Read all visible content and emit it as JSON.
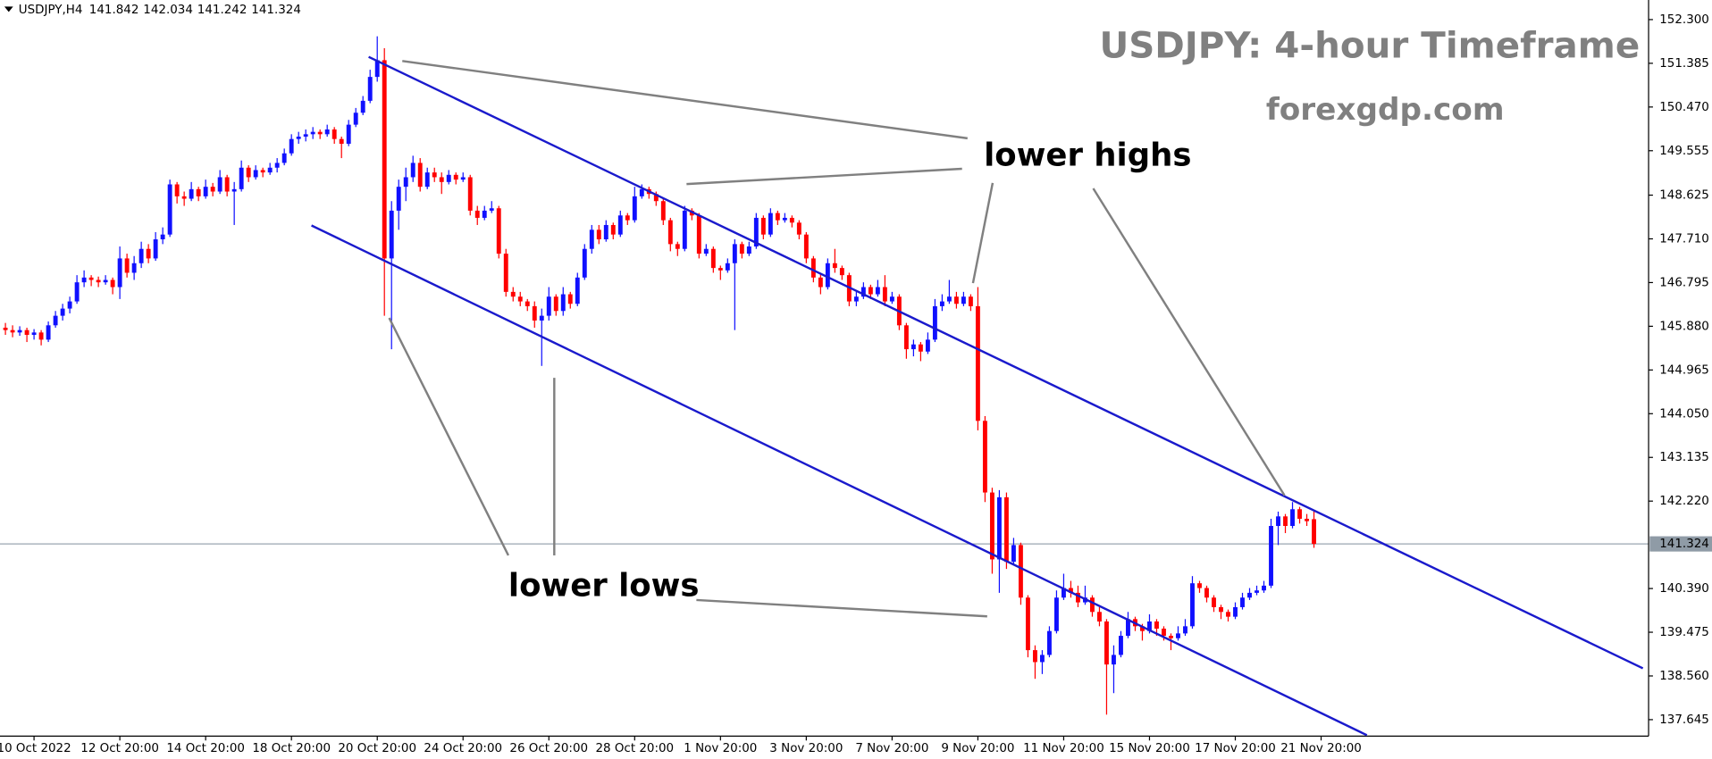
{
  "chart_data": {
    "type": "candlestick",
    "symbol": "USDJPY,H4",
    "title": "USDJPY: 4-hour Timeframe",
    "subtitle": "forexgdp.com",
    "annotations": [
      "lower highs",
      "lower lows"
    ],
    "up_color": "#1010ff",
    "down_color": "#ff0000",
    "trendline_color": "#1a1acc",
    "xlim": [
      -0.76,
      229.8
    ],
    "ylim": [
      137.3,
      152.71
    ],
    "yticks": [
      {
        "value": 152.3,
        "label": "152.300"
      },
      {
        "value": 151.385,
        "label": "151.385"
      },
      {
        "value": 150.47,
        "label": "150.470"
      },
      {
        "value": 149.555,
        "label": "149.555"
      },
      {
        "value": 148.625,
        "label": "148.625"
      },
      {
        "value": 147.71,
        "label": "147.710"
      },
      {
        "value": 146.795,
        "label": "146.795"
      },
      {
        "value": 145.88,
        "label": "145.880"
      },
      {
        "value": 144.965,
        "label": "144.965"
      },
      {
        "value": 144.05,
        "label": "144.050"
      },
      {
        "value": 143.135,
        "label": "143.135"
      },
      {
        "value": 142.22,
        "label": "142.220"
      },
      {
        "value": 140.39,
        "label": "140.390"
      },
      {
        "value": 139.475,
        "label": "139.475"
      },
      {
        "value": 138.56,
        "label": "138.560"
      },
      {
        "value": 137.645,
        "label": "137.645"
      }
    ],
    "xticks": [
      {
        "value": 4,
        "label": "10 Oct 2022"
      },
      {
        "value": 16,
        "label": "12 Oct 20:00"
      },
      {
        "value": 28,
        "label": "14 Oct 20:00"
      },
      {
        "value": 40,
        "label": "18 Oct 20:00"
      },
      {
        "value": 52,
        "label": "20 Oct 20:00"
      },
      {
        "value": 64,
        "label": "24 Oct 20:00"
      },
      {
        "value": 76,
        "label": "26 Oct 20:00"
      },
      {
        "value": 88,
        "label": "28 Oct 20:00"
      },
      {
        "value": 100,
        "label": "1 Nov 20:00"
      },
      {
        "value": 112,
        "label": "3 Nov 20:00"
      },
      {
        "value": 124,
        "label": "7 Nov 20:00"
      },
      {
        "value": 136,
        "label": "9 Nov 20:00"
      },
      {
        "value": 148,
        "label": "11 Nov 20:00"
      },
      {
        "value": 160,
        "label": "15 Nov 20:00"
      },
      {
        "value": 172,
        "label": "17 Nov 20:00"
      },
      {
        "value": 184,
        "label": "21 Nov 20:00"
      }
    ],
    "trendlines": [
      {
        "x": [
          50.8,
          229
        ],
        "y": [
          151.52,
          138.72
        ]
      },
      {
        "x": [
          42.8,
          190.4
        ],
        "y": [
          147.99,
          137.32
        ]
      }
    ],
    "ohlc": [
      [
        145.85,
        145.95,
        145.7,
        145.8
      ],
      [
        145.8,
        145.9,
        145.65,
        145.75
      ],
      [
        145.75,
        145.88,
        145.68,
        145.8
      ],
      [
        145.8,
        145.85,
        145.55,
        145.7
      ],
      [
        145.7,
        145.82,
        145.6,
        145.75
      ],
      [
        145.75,
        145.8,
        145.48,
        145.6
      ],
      [
        145.6,
        145.98,
        145.55,
        145.9
      ],
      [
        145.9,
        146.2,
        145.85,
        146.1
      ],
      [
        146.1,
        146.35,
        146.0,
        146.25
      ],
      [
        146.25,
        146.5,
        146.15,
        146.4
      ],
      [
        146.4,
        146.95,
        146.35,
        146.8
      ],
      [
        146.8,
        147.05,
        146.7,
        146.9
      ],
      [
        146.9,
        146.95,
        146.72,
        146.85
      ],
      [
        146.85,
        146.92,
        146.7,
        146.8
      ],
      [
        146.8,
        146.95,
        146.75,
        146.85
      ],
      [
        146.85,
        146.9,
        146.55,
        146.7
      ],
      [
        146.7,
        147.55,
        146.45,
        147.3
      ],
      [
        147.3,
        147.4,
        146.9,
        147.0
      ],
      [
        147.0,
        147.35,
        146.85,
        147.2
      ],
      [
        147.2,
        147.65,
        147.1,
        147.5
      ],
      [
        147.5,
        147.6,
        147.2,
        147.3
      ],
      [
        147.3,
        147.85,
        147.25,
        147.7
      ],
      [
        147.7,
        147.95,
        147.6,
        147.8
      ],
      [
        147.8,
        148.95,
        147.75,
        148.85
      ],
      [
        148.85,
        148.9,
        148.45,
        148.6
      ],
      [
        148.6,
        148.7,
        148.4,
        148.55
      ],
      [
        148.55,
        148.9,
        148.5,
        148.75
      ],
      [
        148.75,
        148.8,
        148.5,
        148.6
      ],
      [
        148.6,
        148.95,
        148.55,
        148.8
      ],
      [
        148.8,
        148.88,
        148.6,
        148.7
      ],
      [
        148.7,
        149.15,
        148.65,
        149.0
      ],
      [
        149.0,
        149.05,
        148.6,
        148.7
      ],
      [
        148.7,
        148.9,
        148.0,
        148.75
      ],
      [
        148.75,
        149.35,
        148.7,
        149.2
      ],
      [
        149.2,
        149.25,
        148.9,
        149.0
      ],
      [
        149.0,
        149.25,
        148.95,
        149.15
      ],
      [
        149.15,
        149.2,
        149.0,
        149.1
      ],
      [
        149.1,
        149.3,
        149.05,
        149.2
      ],
      [
        149.2,
        149.4,
        149.1,
        149.3
      ],
      [
        149.3,
        149.6,
        149.25,
        149.5
      ],
      [
        149.5,
        149.9,
        149.45,
        149.8
      ],
      [
        149.8,
        149.95,
        149.7,
        149.85
      ],
      [
        149.85,
        150.0,
        149.75,
        149.9
      ],
      [
        149.9,
        150.05,
        149.8,
        149.95
      ],
      [
        149.95,
        150.0,
        149.8,
        149.9
      ],
      [
        149.9,
        150.1,
        149.85,
        150.0
      ],
      [
        150.0,
        150.05,
        149.7,
        149.8
      ],
      [
        149.8,
        149.85,
        149.4,
        149.7
      ],
      [
        149.7,
        150.2,
        149.65,
        150.1
      ],
      [
        150.1,
        150.45,
        150.05,
        150.35
      ],
      [
        150.35,
        150.7,
        150.3,
        150.6
      ],
      [
        150.6,
        151.25,
        150.55,
        151.1
      ],
      [
        151.1,
        151.95,
        151.0,
        151.45
      ],
      [
        151.45,
        151.7,
        146.1,
        147.3
      ],
      [
        147.3,
        148.5,
        145.4,
        148.3
      ],
      [
        148.3,
        148.95,
        147.9,
        148.8
      ],
      [
        148.8,
        149.2,
        148.5,
        149.0
      ],
      [
        149.0,
        149.45,
        148.9,
        149.3
      ],
      [
        149.3,
        149.4,
        148.7,
        148.8
      ],
      [
        148.8,
        149.2,
        148.75,
        149.1
      ],
      [
        149.1,
        149.2,
        148.9,
        149.0
      ],
      [
        149.0,
        149.1,
        148.65,
        148.9
      ],
      [
        148.9,
        149.15,
        148.85,
        149.05
      ],
      [
        149.05,
        149.1,
        148.85,
        148.95
      ],
      [
        148.95,
        149.1,
        148.9,
        149.0
      ],
      [
        149.0,
        149.05,
        148.2,
        148.3
      ],
      [
        148.3,
        148.4,
        148.0,
        148.15
      ],
      [
        148.15,
        148.4,
        148.1,
        148.3
      ],
      [
        148.3,
        148.5,
        148.25,
        148.35
      ],
      [
        148.35,
        148.4,
        147.3,
        147.4
      ],
      [
        147.4,
        147.5,
        146.5,
        146.6
      ],
      [
        146.6,
        146.7,
        146.4,
        146.5
      ],
      [
        146.5,
        146.6,
        146.3,
        146.4
      ],
      [
        146.4,
        146.45,
        146.2,
        146.3
      ],
      [
        146.3,
        146.4,
        145.85,
        146.0
      ],
      [
        146.0,
        146.25,
        145.05,
        146.1
      ],
      [
        146.1,
        146.7,
        146.0,
        146.5
      ],
      [
        146.5,
        146.55,
        146.1,
        146.2
      ],
      [
        146.2,
        146.7,
        146.1,
        146.55
      ],
      [
        146.55,
        146.6,
        146.25,
        146.35
      ],
      [
        146.35,
        147.0,
        146.3,
        146.9
      ],
      [
        146.9,
        147.6,
        146.85,
        147.5
      ],
      [
        147.5,
        148.0,
        147.4,
        147.9
      ],
      [
        147.9,
        148.0,
        147.6,
        147.7
      ],
      [
        147.7,
        148.1,
        147.65,
        148.0
      ],
      [
        148.0,
        148.05,
        147.7,
        147.8
      ],
      [
        147.8,
        148.3,
        147.75,
        148.2
      ],
      [
        148.2,
        148.25,
        148.0,
        148.1
      ],
      [
        148.1,
        148.8,
        148.05,
        148.6
      ],
      [
        148.6,
        148.85,
        148.55,
        148.75
      ],
      [
        148.75,
        148.8,
        148.55,
        148.65
      ],
      [
        148.65,
        148.7,
        148.4,
        148.5
      ],
      [
        148.5,
        148.55,
        148.0,
        148.1
      ],
      [
        148.1,
        148.15,
        147.45,
        147.6
      ],
      [
        147.6,
        147.65,
        147.35,
        147.5
      ],
      [
        147.5,
        148.4,
        147.45,
        148.3
      ],
      [
        148.3,
        148.35,
        148.1,
        148.2
      ],
      [
        148.2,
        148.25,
        147.3,
        147.4
      ],
      [
        147.4,
        147.6,
        147.35,
        147.5
      ],
      [
        147.5,
        147.55,
        147.0,
        147.1
      ],
      [
        147.1,
        147.15,
        146.85,
        147.05
      ],
      [
        147.05,
        147.3,
        147.0,
        147.2
      ],
      [
        147.2,
        147.7,
        145.8,
        147.6
      ],
      [
        147.6,
        147.65,
        147.3,
        147.4
      ],
      [
        147.4,
        147.65,
        147.35,
        147.55
      ],
      [
        147.55,
        148.25,
        147.5,
        148.15
      ],
      [
        148.15,
        148.2,
        147.7,
        147.8
      ],
      [
        147.8,
        148.35,
        147.75,
        148.25
      ],
      [
        148.25,
        148.3,
        148.0,
        148.1
      ],
      [
        148.1,
        148.25,
        148.05,
        148.15
      ],
      [
        148.15,
        148.2,
        147.95,
        148.05
      ],
      [
        148.05,
        148.1,
        147.7,
        147.8
      ],
      [
        147.8,
        147.85,
        147.2,
        147.3
      ],
      [
        147.3,
        147.35,
        146.8,
        146.9
      ],
      [
        146.9,
        147.0,
        146.55,
        146.7
      ],
      [
        146.7,
        147.3,
        146.65,
        147.2
      ],
      [
        147.2,
        147.5,
        147.0,
        147.1
      ],
      [
        147.1,
        147.15,
        146.85,
        146.95
      ],
      [
        146.95,
        147.0,
        146.3,
        146.4
      ],
      [
        146.4,
        146.6,
        146.3,
        146.5
      ],
      [
        146.5,
        146.8,
        146.45,
        146.7
      ],
      [
        146.7,
        146.75,
        146.45,
        146.55
      ],
      [
        146.55,
        146.85,
        146.5,
        146.7
      ],
      [
        146.7,
        146.95,
        146.3,
        146.4
      ],
      [
        146.4,
        146.6,
        146.35,
        146.5
      ],
      [
        146.5,
        146.55,
        145.8,
        145.9
      ],
      [
        145.9,
        145.95,
        145.2,
        145.4
      ],
      [
        145.4,
        145.6,
        145.25,
        145.5
      ],
      [
        145.5,
        145.55,
        145.15,
        145.35
      ],
      [
        145.35,
        145.75,
        145.3,
        145.6
      ],
      [
        145.6,
        146.45,
        145.55,
        146.3
      ],
      [
        146.3,
        146.55,
        146.2,
        146.4
      ],
      [
        146.4,
        146.85,
        146.35,
        146.5
      ],
      [
        146.5,
        146.6,
        146.25,
        146.35
      ],
      [
        146.35,
        146.6,
        146.3,
        146.5
      ],
      [
        146.5,
        146.55,
        146.2,
        146.3
      ],
      [
        146.3,
        146.7,
        143.7,
        143.9
      ],
      [
        143.9,
        144.0,
        142.2,
        142.4
      ],
      [
        142.4,
        142.5,
        140.7,
        141.0
      ],
      [
        141.0,
        142.45,
        140.3,
        142.3
      ],
      [
        142.3,
        142.4,
        140.8,
        140.95
      ],
      [
        140.95,
        141.45,
        140.9,
        141.3
      ],
      [
        141.3,
        141.35,
        140.05,
        140.2
      ],
      [
        140.2,
        140.25,
        138.95,
        139.1
      ],
      [
        139.1,
        139.2,
        138.5,
        138.85
      ],
      [
        138.85,
        139.1,
        138.6,
        139.0
      ],
      [
        139.0,
        139.6,
        138.95,
        139.5
      ],
      [
        139.5,
        140.35,
        139.45,
        140.2
      ],
      [
        140.2,
        140.7,
        140.15,
        140.4
      ],
      [
        140.4,
        140.55,
        140.2,
        140.3
      ],
      [
        140.3,
        140.45,
        140.0,
        140.1
      ],
      [
        140.1,
        140.45,
        140.05,
        140.2
      ],
      [
        140.2,
        140.25,
        139.8,
        139.9
      ],
      [
        139.9,
        140.0,
        139.6,
        139.7
      ],
      [
        139.7,
        139.75,
        137.75,
        138.8
      ],
      [
        138.8,
        139.2,
        138.2,
        139.0
      ],
      [
        139.0,
        139.5,
        138.95,
        139.4
      ],
      [
        139.4,
        139.9,
        139.35,
        139.75
      ],
      [
        139.75,
        139.8,
        139.5,
        139.6
      ],
      [
        139.6,
        139.65,
        139.3,
        139.5
      ],
      [
        139.5,
        139.85,
        139.45,
        139.7
      ],
      [
        139.7,
        139.75,
        139.4,
        139.55
      ],
      [
        139.55,
        139.6,
        139.3,
        139.4
      ],
      [
        139.4,
        139.45,
        139.1,
        139.35
      ],
      [
        139.35,
        139.6,
        139.3,
        139.45
      ],
      [
        139.45,
        139.75,
        139.4,
        139.6
      ],
      [
        139.6,
        140.65,
        139.55,
        140.5
      ],
      [
        140.5,
        140.55,
        140.3,
        140.4
      ],
      [
        140.4,
        140.45,
        140.1,
        140.2
      ],
      [
        140.2,
        140.25,
        139.9,
        140.0
      ],
      [
        140.0,
        140.05,
        139.75,
        139.9
      ],
      [
        139.9,
        139.95,
        139.7,
        139.8
      ],
      [
        139.8,
        140.1,
        139.75,
        140.0
      ],
      [
        140.0,
        140.3,
        139.95,
        140.2
      ],
      [
        140.2,
        140.4,
        140.15,
        140.3
      ],
      [
        140.3,
        140.45,
        140.25,
        140.35
      ],
      [
        140.35,
        140.55,
        140.3,
        140.45
      ],
      [
        140.45,
        141.85,
        140.4,
        141.7
      ],
      [
        141.7,
        142.0,
        141.3,
        141.9
      ],
      [
        141.9,
        141.95,
        141.55,
        141.7
      ],
      [
        141.7,
        142.2,
        141.65,
        142.05
      ],
      [
        142.05,
        142.1,
        141.75,
        141.85
      ],
      [
        141.85,
        141.95,
        141.7,
        141.8
      ],
      [
        141.842,
        142.034,
        141.242,
        141.324
      ]
    ]
  }
}
